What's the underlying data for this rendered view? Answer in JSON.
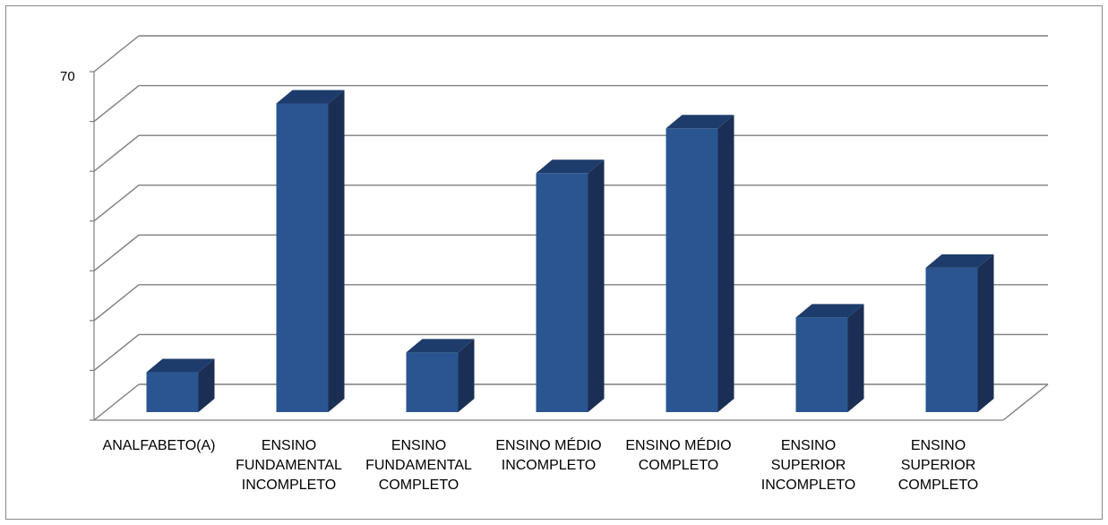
{
  "chart_data": {
    "type": "bar",
    "style": "3d-column",
    "title": "",
    "xlabel": "",
    "ylabel": "",
    "categories": [
      [
        "ANALFABETO(A)"
      ],
      [
        "ENSINO",
        "FUNDAMENTAL",
        "INCOMPLETO"
      ],
      [
        "ENSINO",
        "FUNDAMENTAL",
        "COMPLETO"
      ],
      [
        "ENSINO MÉDIO",
        "INCOMPLETO"
      ],
      [
        "ENSINO MÉDIO",
        "COMPLETO"
      ],
      [
        "ENSINO",
        "SUPERIOR",
        "INCOMPLETO"
      ],
      [
        "ENSINO",
        "SUPERIOR",
        "COMPLETO"
      ]
    ],
    "values": [
      8,
      62,
      12,
      48,
      57,
      19,
      29
    ],
    "ylim": [
      0,
      70
    ],
    "y_tick_labels": [
      "70"
    ],
    "gridlines": true,
    "colors": {
      "bar_front": "#2a5590",
      "bar_side": "#1b2f55",
      "bar_top": "#1e3c6b",
      "grid": "#7f7f7f"
    }
  }
}
